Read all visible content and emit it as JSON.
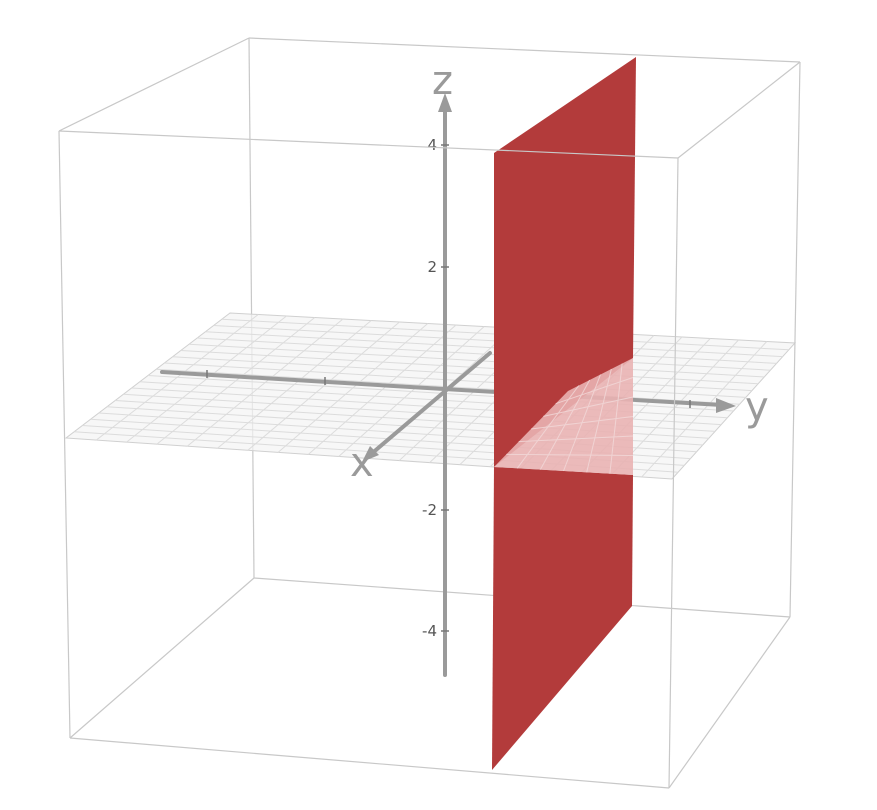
{
  "axes": {
    "x_label": "x",
    "y_label": "y",
    "z_label": "z",
    "z_ticks": [
      "4",
      "2",
      "-2",
      "-4"
    ]
  },
  "plane": {
    "color": "#b33b3b"
  },
  "colors": {
    "box": "#c8c8c8",
    "axis": "#9a9a9a",
    "grid": "#dddddd"
  }
}
